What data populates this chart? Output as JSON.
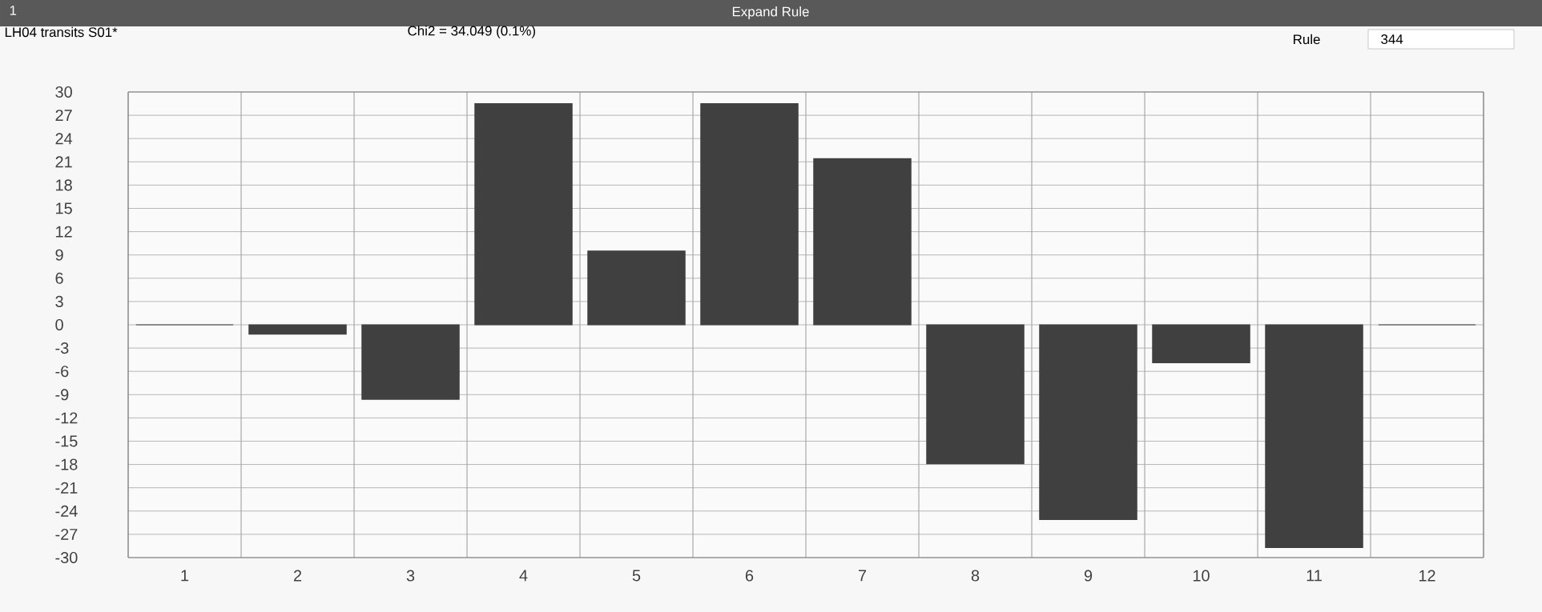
{
  "chart_data": {
    "type": "bar",
    "title": "Expand Rule",
    "annotations": [
      "1",
      "LH04 transits S01*",
      "Chi2 = 34.049 (0.1%)",
      "Rule",
      "344"
    ],
    "categories": [
      "1",
      "2",
      "3",
      "4",
      "5",
      "6",
      "7",
      "8",
      "9",
      "10",
      "11",
      "12"
    ],
    "values": [
      0,
      -1.2,
      -9.6,
      28.5,
      9.5,
      28.5,
      21.4,
      -17.9,
      -25.1,
      -4.9,
      -28.7,
      0
    ],
    "color": "#404040",
    "ylim": [
      -30,
      30
    ],
    "yticks": [
      -30,
      -27,
      -24,
      -21,
      -18,
      -15,
      -12,
      -9,
      -6,
      -3,
      0,
      3,
      6,
      9,
      12,
      15,
      18,
      21,
      24,
      27,
      30
    ],
    "grid": true
  }
}
